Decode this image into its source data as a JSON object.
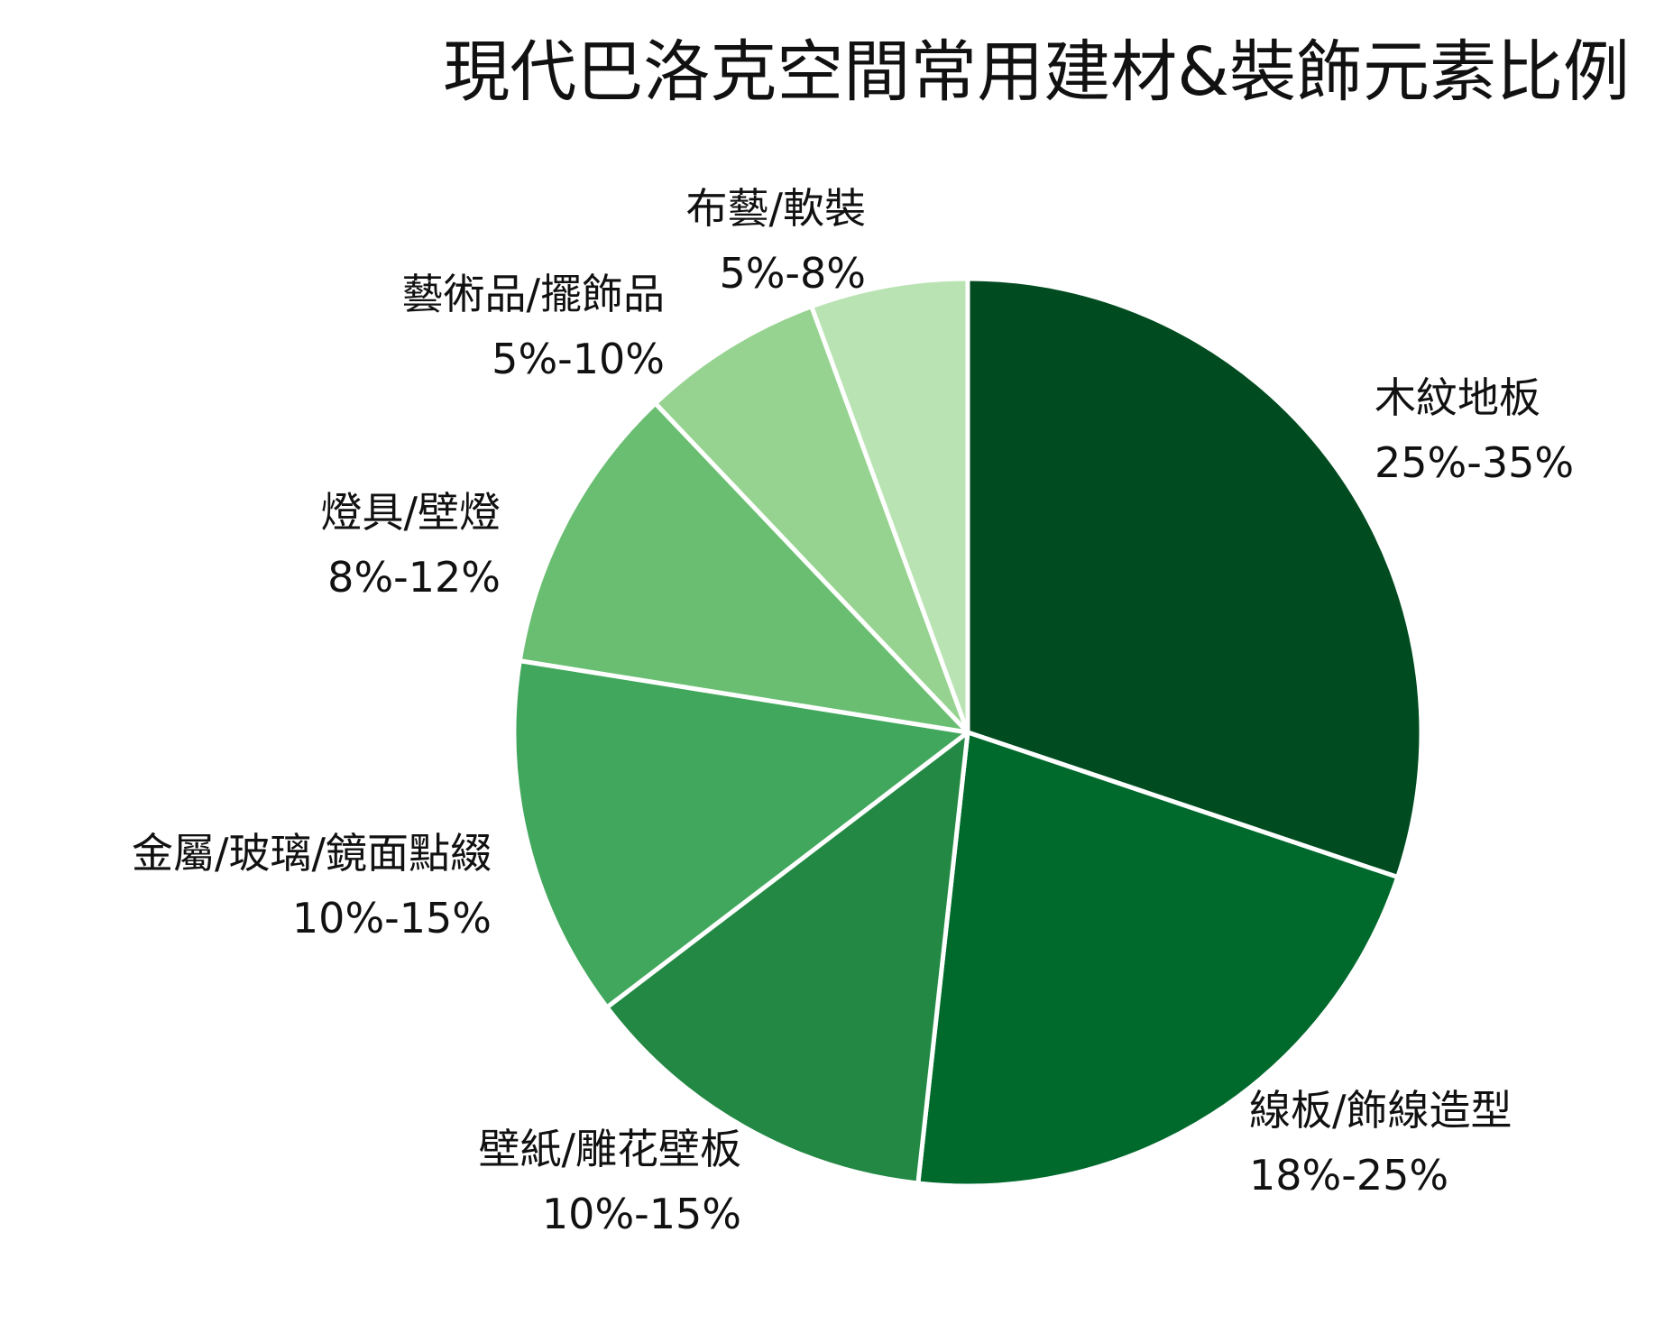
{
  "chart_data": {
    "type": "pie",
    "title": "現代巴洛克空間常用建材&裝飾元素比例",
    "start_angle_deg": 0,
    "direction": "clockwise",
    "slices": [
      {
        "name": "木紋地板",
        "range_label": "25%-35%",
        "value": 30.2,
        "color": "#004b1f"
      },
      {
        "name": "線板/飾線造型",
        "range_label": "18%-25%",
        "value": 21.6,
        "color": "#00692c"
      },
      {
        "name": "壁紙/雕花壁板",
        "range_label": "10%-15%",
        "value": 12.9,
        "color": "#228843"
      },
      {
        "name": "金屬/玻璃/鏡面點綴",
        "range_label": "10%-15%",
        "value": 12.9,
        "color": "#41a75c"
      },
      {
        "name": "燈具/壁燈",
        "range_label": "8%-12%",
        "value": 10.4,
        "color": "#6abe72"
      },
      {
        "name": "藝術品/擺飾品",
        "range_label": "5%-10%",
        "value": 6.5,
        "color": "#96d390"
      },
      {
        "name": "布藝/軟裝",
        "range_label": "5%-8%",
        "value": 5.6,
        "color": "#bae3b3"
      }
    ]
  }
}
